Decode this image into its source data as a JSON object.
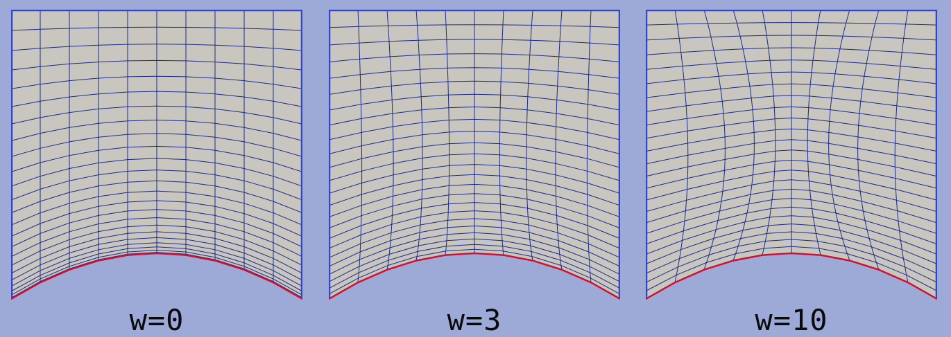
{
  "panels": [
    {
      "label": "w=0",
      "w": 0
    },
    {
      "label": "w=3",
      "w": 3
    },
    {
      "label": "w=10",
      "w": 10
    }
  ],
  "colors": {
    "background": "#9daad8",
    "domain_fill": "#c8c6bf",
    "grid_line": "#1a2a8c",
    "boundary": "#3344cc",
    "curved_boundary": "#cc1133",
    "label_text": "#0a0a0a"
  }
}
